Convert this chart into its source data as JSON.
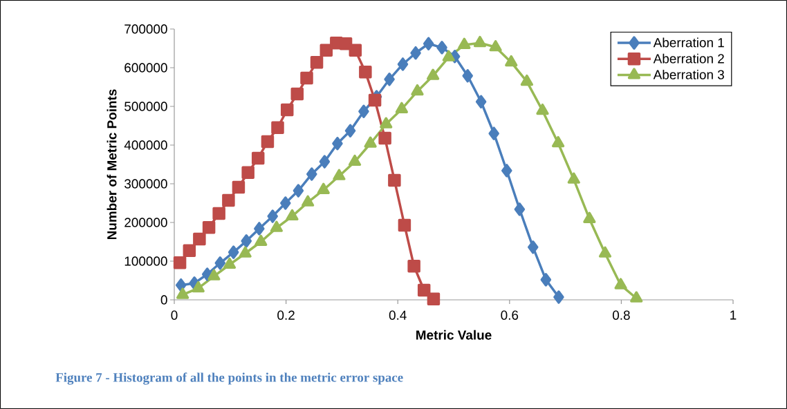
{
  "chart_data": {
    "type": "line",
    "xlabel": "Metric Value",
    "ylabel": "Number of Metric Points",
    "annotations": [
      "Figure 7 - Histogram of all the points in the metric error space"
    ],
    "xlim": [
      0,
      1
    ],
    "xticks": [
      0,
      0.2,
      0.4,
      0.6,
      0.8,
      1
    ],
    "ylim": [
      0,
      700000
    ],
    "yticks": [
      0,
      100000,
      200000,
      300000,
      400000,
      500000,
      600000,
      700000
    ],
    "legend": "top right",
    "line_style": "solid",
    "series": [
      {
        "name": "Aberration 1",
        "color": "#4a7ebb",
        "marker": "diamond",
        "x": [
          0.012,
          0.036,
          0.059,
          0.082,
          0.106,
          0.129,
          0.152,
          0.176,
          0.199,
          0.222,
          0.246,
          0.269,
          0.292,
          0.315,
          0.339,
          0.362,
          0.385,
          0.409,
          0.432,
          0.455,
          0.479,
          0.502,
          0.525,
          0.549,
          0.572,
          0.595,
          0.618,
          0.642,
          0.665,
          0.688
        ],
        "values": [
          38000,
          43000,
          66000,
          95000,
          123000,
          152000,
          184000,
          216000,
          250000,
          282000,
          325000,
          357000,
          404000,
          437000,
          487000,
          525000,
          570000,
          609000,
          638000,
          662000,
          652000,
          629000,
          579000,
          512000,
          430000,
          334000,
          234000,
          136000,
          52000,
          7000
        ]
      },
      {
        "name": "Aberration 2",
        "color": "#be4b48",
        "marker": "square",
        "x": [
          0.01,
          0.027,
          0.045,
          0.062,
          0.08,
          0.097,
          0.115,
          0.132,
          0.15,
          0.167,
          0.185,
          0.202,
          0.22,
          0.237,
          0.255,
          0.272,
          0.29,
          0.307,
          0.324,
          0.342,
          0.359,
          0.377,
          0.394,
          0.412,
          0.429,
          0.447,
          0.464
        ],
        "values": [
          96000,
          127000,
          157000,
          187000,
          223000,
          257000,
          291000,
          329000,
          366000,
          409000,
          445000,
          491000,
          532000,
          573000,
          614000,
          645000,
          664000,
          662000,
          645000,
          589000,
          516000,
          418000,
          309000,
          193000,
          87000,
          25000,
          2000
        ]
      },
      {
        "name": "Aberration 3",
        "color": "#98b954",
        "marker": "triangle",
        "x": [
          0.015,
          0.043,
          0.071,
          0.099,
          0.127,
          0.155,
          0.183,
          0.211,
          0.239,
          0.267,
          0.295,
          0.323,
          0.351,
          0.379,
          0.407,
          0.435,
          0.463,
          0.491,
          0.519,
          0.547,
          0.575,
          0.603,
          0.631,
          0.659,
          0.687,
          0.715,
          0.743,
          0.771,
          0.799,
          0.827
        ],
        "values": [
          13000,
          30000,
          61000,
          91000,
          120000,
          150000,
          186000,
          216000,
          252000,
          284000,
          320000,
          357000,
          404000,
          454000,
          493000,
          539000,
          579000,
          627000,
          659000,
          664000,
          653000,
          614000,
          564000,
          489000,
          405000,
          311000,
          209000,
          120000,
          38000,
          4000
        ]
      }
    ]
  }
}
